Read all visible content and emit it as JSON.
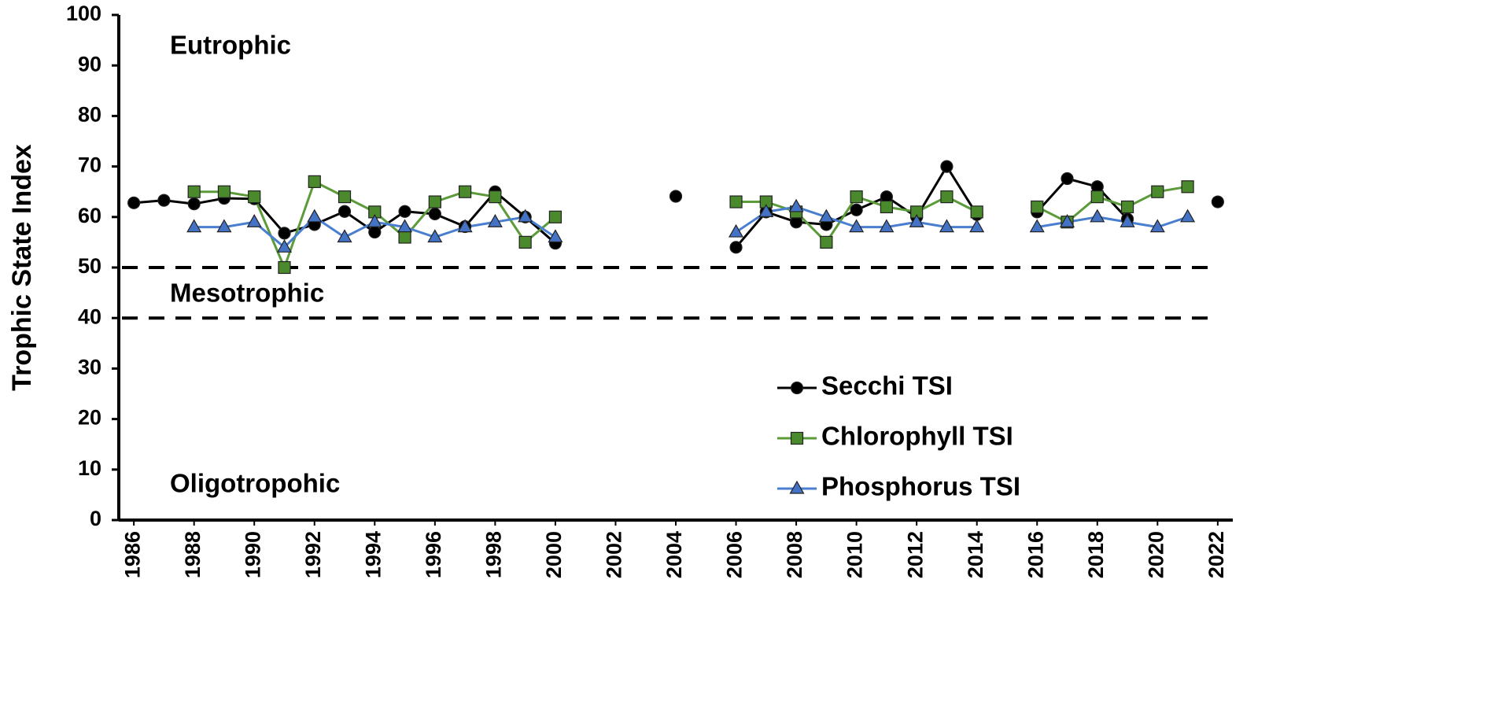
{
  "chart_data": {
    "type": "line",
    "y_label": "Trophic State Index",
    "annotations": [
      "Eutrophic",
      "Mesotrophic",
      "Oligotropohic"
    ],
    "reference_lines": [
      50,
      40
    ],
    "x": [
      1986,
      1987,
      1988,
      1989,
      1990,
      1991,
      1992,
      1993,
      1994,
      1995,
      1996,
      1997,
      1998,
      1999,
      2000,
      2001,
      2002,
      2003,
      2004,
      2005,
      2006,
      2007,
      2008,
      2009,
      2010,
      2011,
      2012,
      2013,
      2014,
      2015,
      2016,
      2017,
      2018,
      2019,
      2020,
      2021,
      2022
    ],
    "xlim": [
      1985.5,
      2022.5
    ],
    "xticks": [
      1986,
      1988,
      1990,
      1992,
      1994,
      1996,
      1998,
      2000,
      2002,
      2004,
      2006,
      2008,
      2010,
      2012,
      2014,
      2016,
      2018,
      2020,
      2022
    ],
    "ylim": [
      0,
      100
    ],
    "yticks": [
      0,
      10,
      20,
      30,
      40,
      50,
      60,
      70,
      80,
      90,
      100
    ],
    "legend": "lower right",
    "series": [
      {
        "name": "Secchi TSI",
        "color": "#000000",
        "marker": "circle",
        "marker_color": "#000000",
        "values": [
          62.8,
          63.3,
          62.6,
          63.7,
          63.6,
          56.8,
          58.5,
          61.1,
          57.0,
          61.1,
          60.6,
          58.1,
          65.0,
          60.0,
          54.8,
          null,
          null,
          null,
          64.1,
          null,
          54.0,
          61.0,
          59.0,
          58.5,
          61.4,
          64.0,
          60.0,
          70.0,
          60.5,
          null,
          61.0,
          67.6,
          66.0,
          59.6,
          null,
          null,
          63.0
        ]
      },
      {
        "name": "Chlorophyll TSI",
        "color": "#5b9b3a",
        "marker": "square",
        "marker_color": "#4a8a2c",
        "values": [
          null,
          null,
          65,
          65,
          64,
          50,
          67,
          64,
          61,
          56,
          63,
          65,
          64,
          55,
          60,
          null,
          null,
          null,
          null,
          null,
          63,
          63,
          61,
          55,
          64,
          62,
          61,
          64,
          61,
          null,
          62,
          59,
          64,
          62,
          65,
          66,
          null
        ]
      },
      {
        "name": "Phosphorus TSI",
        "color": "#4a7fd0",
        "marker": "triangle",
        "marker_color": "#4472c4",
        "values": [
          null,
          null,
          58,
          58,
          59,
          54,
          60,
          56,
          59,
          58,
          56,
          58,
          59,
          60,
          56,
          null,
          null,
          null,
          null,
          null,
          57,
          61,
          62,
          60,
          58,
          58,
          59,
          58,
          58,
          null,
          58,
          59,
          60,
          59,
          58,
          60,
          null
        ]
      }
    ]
  }
}
